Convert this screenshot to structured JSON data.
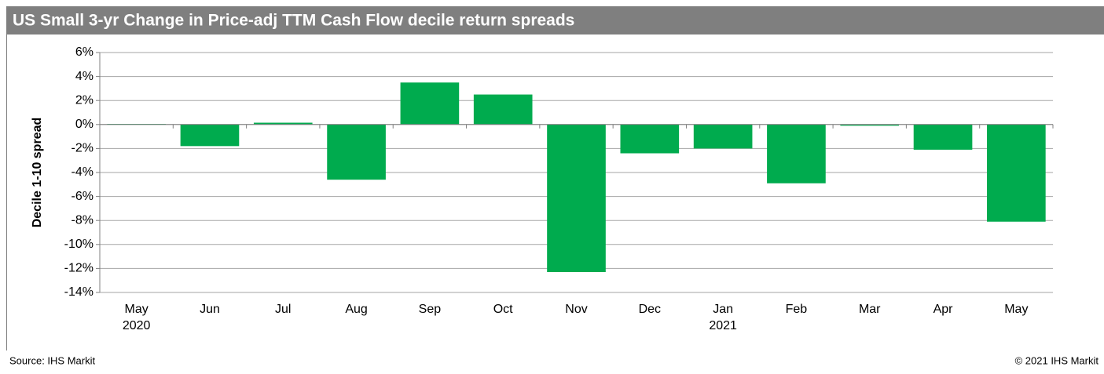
{
  "chart_data": {
    "type": "bar",
    "title": "US Small 3-yr Change in Price-adj TTM Cash Flow decile return spreads",
    "y_label": "Decile 1-10 spread",
    "source": "Source: IHS Markit",
    "copyright": "© 2021 IHS Markit",
    "categories": [
      "May 2020",
      "Jun",
      "Jul",
      "Aug",
      "Sep",
      "Oct",
      "Nov",
      "Dec",
      "Jan 2021",
      "Feb",
      "Mar",
      "Apr",
      "May"
    ],
    "values": [
      0.05,
      -1.8,
      0.15,
      -4.6,
      3.5,
      2.5,
      -12.3,
      -2.4,
      -2.0,
      -4.9,
      -0.1,
      -2.1,
      -8.1
    ],
    "color": "#00ab4e",
    "ylim": [
      -14,
      6
    ],
    "yticks": [
      {
        "value": -14,
        "label": "-14%"
      },
      {
        "value": -12,
        "label": "-12%"
      },
      {
        "value": -10,
        "label": "-10%"
      },
      {
        "value": -8,
        "label": "-8%"
      },
      {
        "value": -6,
        "label": "-6%"
      },
      {
        "value": -4,
        "label": "-4%"
      },
      {
        "value": -2,
        "label": "-2%"
      },
      {
        "value": 0,
        "label": "0%"
      },
      {
        "value": 2,
        "label": "2%"
      },
      {
        "value": 4,
        "label": "4%"
      },
      {
        "value": 6,
        "label": "6%"
      }
    ],
    "grid": true
  }
}
